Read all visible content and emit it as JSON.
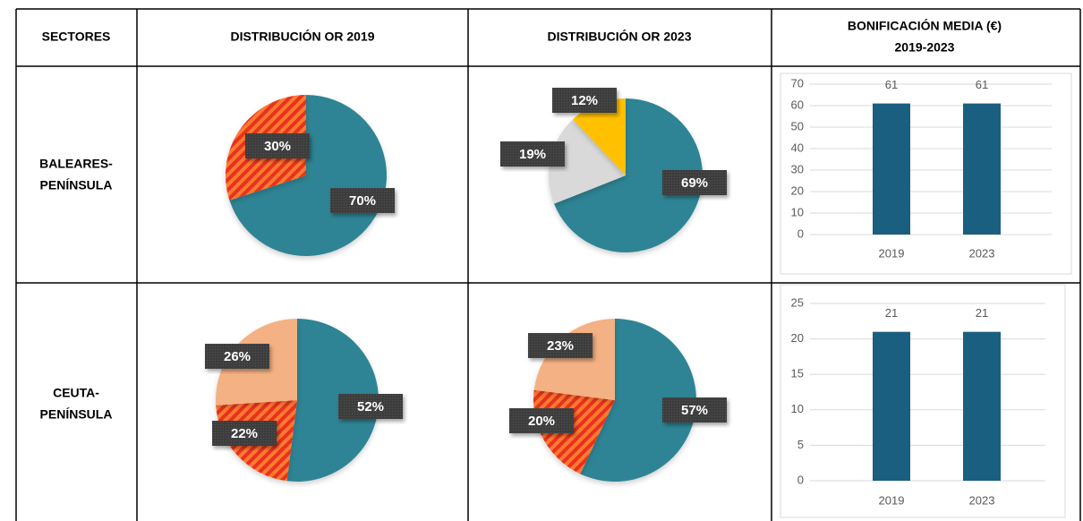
{
  "table": {
    "headers": [
      "SECTORES",
      "DISTRIBUCIÓN OR 2019",
      "DISTRIBUCIÓN OR 2023",
      [
        "BONIFICACIÓN MEDIA (€)",
        "2019-2023"
      ]
    ],
    "rows": [
      {
        "sector": [
          "BALEARES-",
          "PENÍNSULA"
        ],
        "pie_2019": {
          "type": "pie",
          "values": [
            70,
            30
          ],
          "value_labels": [
            "70%",
            "30%"
          ],
          "colors": [
            "#2e8494",
            "#e8321a"
          ],
          "hatched": [
            false,
            true
          ]
        },
        "pie_2023": {
          "type": "pie",
          "values": [
            69,
            19,
            12
          ],
          "value_labels": [
            "69%",
            "19%",
            "12%"
          ],
          "colors": [
            "#2e8494",
            "#d9d9d9",
            "#ffc000"
          ],
          "hatched": [
            false,
            false,
            false
          ]
        },
        "bonus": {
          "type": "bar",
          "categories": [
            "2019",
            "2023"
          ],
          "values": [
            61,
            61
          ],
          "color": "#1a5e80",
          "ylim": [
            0,
            70
          ],
          "yticks": [
            0,
            10,
            20,
            30,
            40,
            50,
            60,
            70
          ],
          "grid": true
        }
      },
      {
        "sector": [
          "CEUTA-",
          "PENÍNSULA"
        ],
        "pie_2019": {
          "type": "pie",
          "values": [
            52,
            22,
            26
          ],
          "value_labels": [
            "52%",
            "22%",
            "26%"
          ],
          "colors": [
            "#2e8494",
            "#e8321a",
            "#f4b183"
          ],
          "hatched": [
            false,
            true,
            false
          ]
        },
        "pie_2023": {
          "type": "pie",
          "values": [
            57,
            20,
            23
          ],
          "value_labels": [
            "57%",
            "20%",
            "23%"
          ],
          "colors": [
            "#2e8494",
            "#e8321a",
            "#f4b183"
          ],
          "hatched": [
            false,
            true,
            false
          ]
        },
        "bonus": {
          "type": "bar",
          "categories": [
            "2019",
            "2023"
          ],
          "values": [
            21,
            21
          ],
          "color": "#1a5e80",
          "ylim": [
            0,
            25
          ],
          "yticks": [
            0,
            5,
            10,
            15,
            20,
            25
          ],
          "grid": true
        }
      }
    ]
  }
}
